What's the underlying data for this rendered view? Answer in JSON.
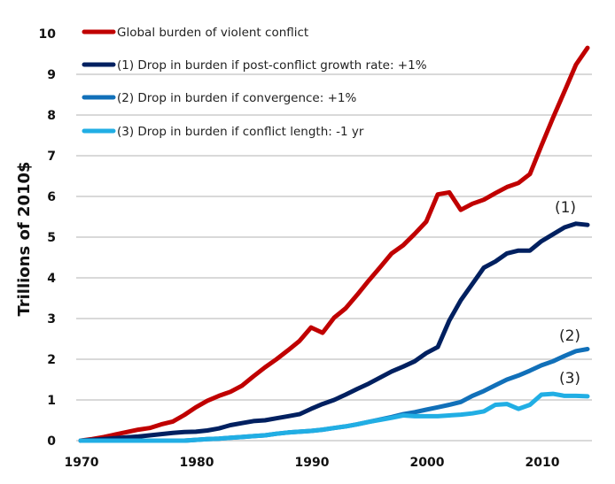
{
  "chart_data": {
    "type": "line",
    "title": "",
    "xlabel": "",
    "ylabel": "Trillions of 2010$",
    "xlim": [
      1970,
      2014
    ],
    "ylim": [
      0,
      10
    ],
    "grid": true,
    "legend_position": "top-left",
    "x_ticks": [
      "1970",
      "1980",
      "1990",
      "2000",
      "2010"
    ],
    "y_ticks": [
      "0",
      "1",
      "2",
      "3",
      "4",
      "5",
      "6",
      "7",
      "8",
      "9",
      "10"
    ],
    "x": [
      1970,
      1971,
      1972,
      1973,
      1974,
      1975,
      1976,
      1977,
      1978,
      1979,
      1980,
      1981,
      1982,
      1983,
      1984,
      1985,
      1986,
      1987,
      1988,
      1989,
      1990,
      1991,
      1992,
      1993,
      1994,
      1995,
      1996,
      1997,
      1998,
      1999,
      2000,
      2001,
      2002,
      2003,
      2004,
      2005,
      2006,
      2007,
      2008,
      2009,
      2010,
      2011,
      2012,
      2013,
      2014
    ],
    "series": [
      {
        "name": "Global burden of violent conflict",
        "color": "#C00000",
        "annotation": "",
        "values": [
          0,
          0.04,
          0.09,
          0.15,
          0.21,
          0.27,
          0.31,
          0.4,
          0.47,
          0.63,
          0.82,
          0.98,
          1.1,
          1.2,
          1.35,
          1.58,
          1.8,
          2.0,
          2.22,
          2.45,
          2.78,
          2.65,
          3.02,
          3.25,
          3.58,
          3.93,
          4.26,
          4.6,
          4.8,
          5.08,
          5.38,
          6.05,
          6.1,
          5.67,
          5.82,
          5.92,
          6.08,
          6.23,
          6.33,
          6.55,
          7.25,
          7.93,
          8.58,
          9.24,
          9.65
        ]
      },
      {
        "name": "(1) Drop in burden if post-conflict growth rate: +1%",
        "color": "#002060",
        "annotation": "(1)",
        "values": [
          0,
          0.02,
          0.04,
          0.06,
          0.08,
          0.1,
          0.13,
          0.16,
          0.19,
          0.21,
          0.22,
          0.25,
          0.3,
          0.38,
          0.43,
          0.48,
          0.5,
          0.55,
          0.6,
          0.65,
          0.78,
          0.9,
          1.0,
          1.13,
          1.27,
          1.4,
          1.55,
          1.7,
          1.82,
          1.95,
          2.15,
          2.3,
          2.95,
          3.45,
          3.85,
          4.25,
          4.4,
          4.6,
          4.67,
          4.67,
          4.9,
          5.07,
          5.24,
          5.33,
          5.3
        ]
      },
      {
        "name": "(2) Drop in burden if convergence: +1%",
        "color": "#1170B9",
        "annotation": "(2)",
        "values": [
          0,
          0,
          0,
          0,
          0,
          0,
          0,
          0,
          0,
          0,
          0.02,
          0.04,
          0.05,
          0.07,
          0.09,
          0.11,
          0.13,
          0.17,
          0.2,
          0.22,
          0.24,
          0.27,
          0.31,
          0.35,
          0.4,
          0.46,
          0.52,
          0.58,
          0.65,
          0.7,
          0.76,
          0.82,
          0.88,
          0.95,
          1.1,
          1.22,
          1.36,
          1.5,
          1.6,
          1.72,
          1.85,
          1.95,
          2.08,
          2.2,
          2.25
        ]
      },
      {
        "name": "(3) Drop in burden if conflict length: -1 yr",
        "color": "#21AEE4",
        "annotation": "(3)",
        "values": [
          0,
          0,
          0,
          0,
          0,
          0,
          0,
          0,
          0,
          0,
          0.02,
          0.04,
          0.05,
          0.07,
          0.09,
          0.11,
          0.13,
          0.17,
          0.2,
          0.22,
          0.24,
          0.27,
          0.31,
          0.35,
          0.4,
          0.46,
          0.51,
          0.56,
          0.62,
          0.6,
          0.6,
          0.6,
          0.62,
          0.64,
          0.67,
          0.72,
          0.88,
          0.9,
          0.78,
          0.88,
          1.13,
          1.15,
          1.1,
          1.1,
          1.09
        ]
      }
    ]
  }
}
